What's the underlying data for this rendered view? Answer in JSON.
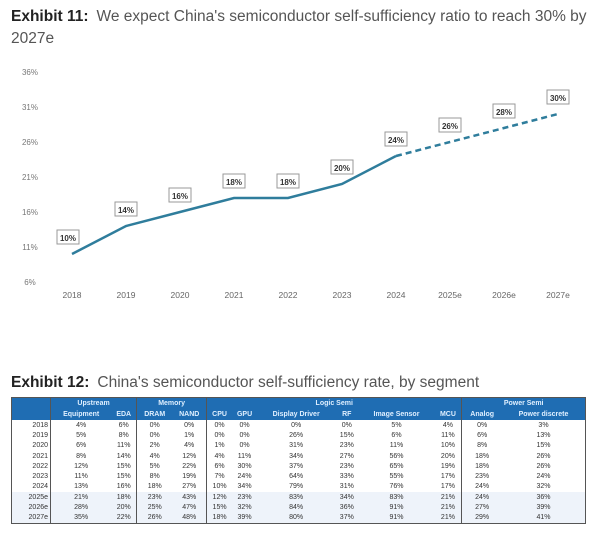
{
  "exhibit11": {
    "label": "Exhibit 11:",
    "title": "We expect China's semiconductor self-sufficiency ratio to reach 30% by 2027e"
  },
  "chart_data": {
    "type": "line",
    "title": "We expect China's semiconductor self-sufficiency ratio to reach 30% by 2027e",
    "categories": [
      "2018",
      "2019",
      "2020",
      "2021",
      "2022",
      "2023",
      "2024",
      "2025e",
      "2026e",
      "2027e"
    ],
    "values": [
      10,
      14,
      16,
      18,
      18,
      20,
      24,
      26,
      28,
      30
    ],
    "data_labels": [
      "10%",
      "14%",
      "16%",
      "18%",
      "18%",
      "20%",
      "24%",
      "26%",
      "28%",
      "30%"
    ],
    "dashed_from": "2024",
    "yticks": [
      "6%",
      "11%",
      "16%",
      "21%",
      "26%",
      "31%",
      "36%"
    ],
    "ylim": [
      6,
      36
    ],
    "grid": false,
    "line_color": "#2f7d9c"
  },
  "exhibit12": {
    "label": "Exhibit 12:",
    "title": "China's semiconductor self-sufficiency rate, by segment",
    "groups": [
      "Upstream",
      "Memory",
      "Logic Semi",
      "Power Semi"
    ],
    "columns": [
      "Equipment",
      "EDA",
      "DRAM",
      "NAND",
      "CPU",
      "GPU",
      "Display Driver",
      "RF",
      "Image Sensor",
      "MCU",
      "Analog",
      "Power discrete"
    ],
    "rows": [
      {
        "year": "2018",
        "v": [
          "4%",
          "6%",
          "0%",
          "0%",
          "0%",
          "0%",
          "0%",
          "0%",
          "5%",
          "4%",
          "0%",
          "3%"
        ]
      },
      {
        "year": "2019",
        "v": [
          "5%",
          "8%",
          "0%",
          "1%",
          "0%",
          "0%",
          "26%",
          "15%",
          "6%",
          "11%",
          "6%",
          "13%"
        ]
      },
      {
        "year": "2020",
        "v": [
          "6%",
          "11%",
          "2%",
          "4%",
          "1%",
          "0%",
          "31%",
          "23%",
          "11%",
          "10%",
          "8%",
          "15%"
        ]
      },
      {
        "year": "2021",
        "v": [
          "8%",
          "14%",
          "4%",
          "12%",
          "4%",
          "11%",
          "34%",
          "27%",
          "56%",
          "20%",
          "18%",
          "26%"
        ]
      },
      {
        "year": "2022",
        "v": [
          "12%",
          "15%",
          "5%",
          "22%",
          "6%",
          "30%",
          "37%",
          "23%",
          "65%",
          "19%",
          "18%",
          "26%"
        ]
      },
      {
        "year": "2023",
        "v": [
          "11%",
          "15%",
          "8%",
          "19%",
          "7%",
          "24%",
          "64%",
          "33%",
          "55%",
          "17%",
          "23%",
          "24%"
        ]
      },
      {
        "year": "2024",
        "v": [
          "13%",
          "16%",
          "18%",
          "27%",
          "10%",
          "34%",
          "79%",
          "31%",
          "76%",
          "17%",
          "24%",
          "32%"
        ]
      },
      {
        "year": "2025e",
        "v": [
          "21%",
          "18%",
          "23%",
          "43%",
          "12%",
          "23%",
          "83%",
          "34%",
          "83%",
          "21%",
          "24%",
          "36%"
        ]
      },
      {
        "year": "2026e",
        "v": [
          "28%",
          "20%",
          "25%",
          "47%",
          "15%",
          "32%",
          "84%",
          "36%",
          "91%",
          "21%",
          "27%",
          "39%"
        ]
      },
      {
        "year": "2027e",
        "v": [
          "35%",
          "22%",
          "26%",
          "48%",
          "18%",
          "39%",
          "80%",
          "37%",
          "91%",
          "21%",
          "29%",
          "41%"
        ]
      }
    ]
  }
}
